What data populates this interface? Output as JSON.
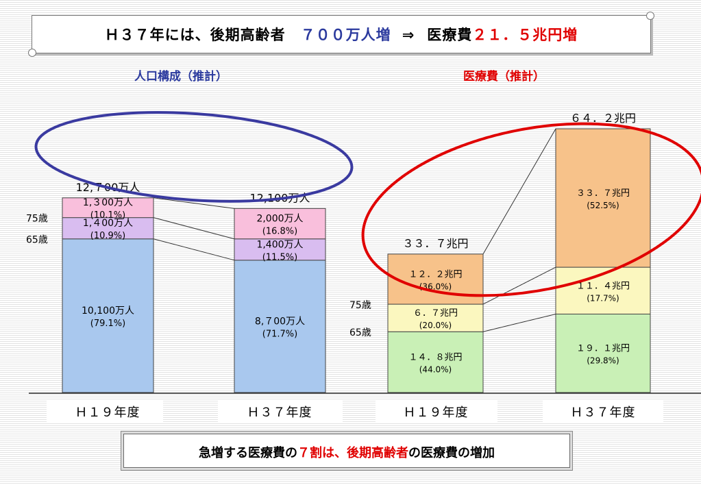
{
  "banner": {
    "part1": "Ｈ３７年には、後期高齢者",
    "part2": "７００万人増",
    "arrow": "⇒",
    "part3": "医療費",
    "part4": "２１．５兆円増"
  },
  "footer": {
    "part1": "急増する医療費の",
    "part2": "７割は、後期高齢者",
    "part3": "の医療費の増加"
  },
  "colors": {
    "blue_text": "#2b3a9e",
    "red_text": "#e00000",
    "under65_pop": "#a9c8ee",
    "age65_74_pop": "#d9bdf0",
    "over75_pop": "#f9bfdc",
    "under65_med": "#c9f0b6",
    "age65_74_med": "#fbf7bf",
    "over75_med": "#f7c28a",
    "ellipse_blue": "#3a3aa0",
    "ellipse_red": "#e00000"
  },
  "chart_data": [
    {
      "type": "bar",
      "title": "人口構成（推計）",
      "categories": [
        "Ｈ１９年度",
        "Ｈ３７年度"
      ],
      "totals": [
        12700,
        12100
      ],
      "total_labels": [
        "12,７00万人",
        "12,100万人"
      ],
      "unit": "万人",
      "age_labels": [
        "75歳",
        "65歳"
      ],
      "series": [
        {
          "key": "under65",
          "values": [
            10100,
            8700
          ],
          "labels": [
            "10,100万人",
            "8,７00万人"
          ],
          "pct": [
            "(79.1%)",
            "(71.7%)"
          ]
        },
        {
          "key": "age65_74",
          "values": [
            1400,
            1400
          ],
          "labels": [
            "1,４00万人",
            "1,400万人"
          ],
          "pct": [
            "(10.9%)",
            "(11.5%)"
          ]
        },
        {
          "key": "over75",
          "values": [
            1300,
            2000
          ],
          "labels": [
            "1,３00万人",
            "2,000万人"
          ],
          "pct": [
            "(10.1%)",
            "(16.8%)"
          ]
        }
      ]
    },
    {
      "type": "bar",
      "title": "医療費（推計）",
      "categories": [
        "Ｈ１９年度",
        "Ｈ３７年度"
      ],
      "totals": [
        33.7,
        64.2
      ],
      "total_labels": [
        "３３．７兆円",
        "６４．２兆円"
      ],
      "unit": "兆円",
      "age_labels": [
        "75歳",
        "65歳"
      ],
      "series": [
        {
          "key": "under65",
          "values": [
            14.8,
            19.1
          ],
          "labels": [
            "１４．８兆円",
            "１９．１兆円"
          ],
          "pct": [
            "(44.0%)",
            "(29.8%)"
          ]
        },
        {
          "key": "age65_74",
          "values": [
            6.7,
            11.4
          ],
          "labels": [
            "６．７兆円",
            "１１．４兆円"
          ],
          "pct": [
            "(20.0%)",
            "(17.7%)"
          ]
        },
        {
          "key": "over75",
          "values": [
            12.2,
            33.7
          ],
          "labels": [
            "１２．２兆円",
            "３３．７兆円"
          ],
          "pct": [
            "(36.0%)",
            "(52.5%)"
          ]
        }
      ]
    }
  ]
}
